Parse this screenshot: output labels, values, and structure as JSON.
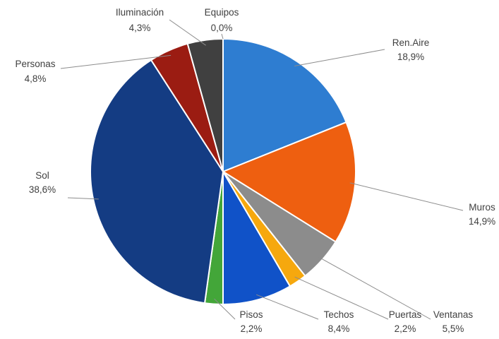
{
  "chart_data": {
    "type": "pie",
    "title": "",
    "start_angle_deg": 0,
    "direction": "clockwise",
    "slices": [
      {
        "label": "Ren.Aire",
        "value": 18.9,
        "display": "18,9%",
        "color": "#2E7DD1"
      },
      {
        "label": "Muros",
        "value": 14.9,
        "display": "14,9%",
        "color": "#EE5F10"
      },
      {
        "label": "Ventanas",
        "value": 5.5,
        "display": "5,5%",
        "color": "#8C8C8C"
      },
      {
        "label": "Puertas",
        "value": 2.2,
        "display": "2,2%",
        "color": "#F6A80E"
      },
      {
        "label": "Techos",
        "value": 8.4,
        "display": "8,4%",
        "color": "#1052C8"
      },
      {
        "label": "Pisos",
        "value": 2.2,
        "display": "2,2%",
        "color": "#43A639"
      },
      {
        "label": "Sol",
        "value": 38.6,
        "display": "38,6%",
        "color": "#143C83"
      },
      {
        "label": "Personas",
        "value": 4.8,
        "display": "4,8%",
        "color": "#9B1C12"
      },
      {
        "label": "Iluminación",
        "value": 4.3,
        "display": "4,3%",
        "color": "#404040"
      },
      {
        "label": "Equipos",
        "value": 0.0,
        "display": "0,0%",
        "color": "#6A6A6A"
      }
    ]
  }
}
